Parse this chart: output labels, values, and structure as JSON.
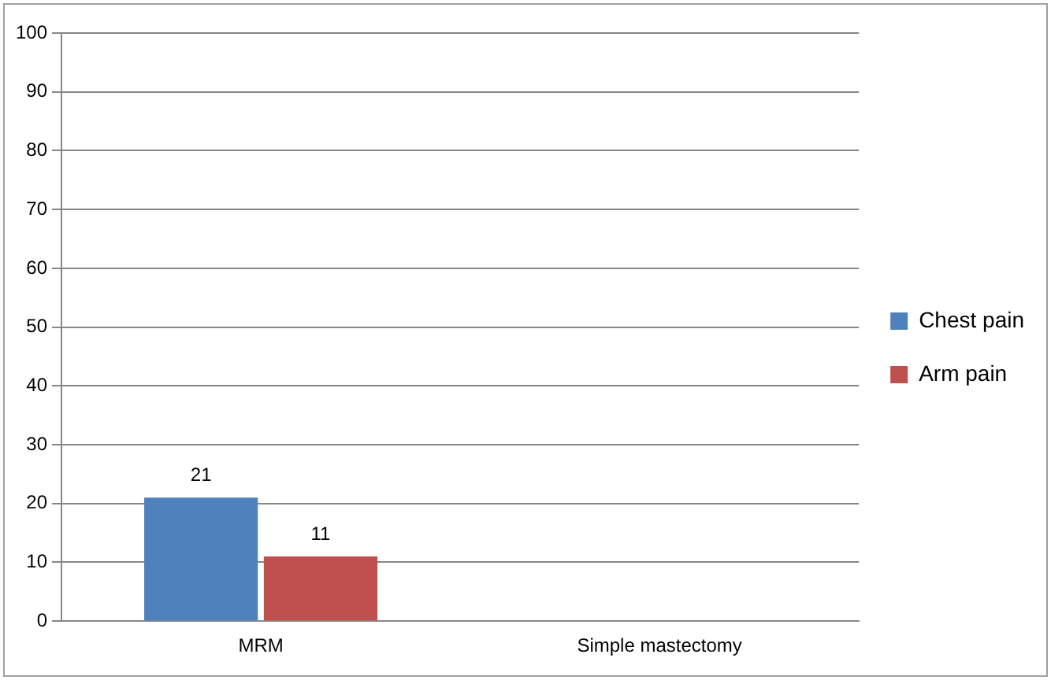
{
  "chart_data": {
    "type": "bar",
    "categories": [
      "MRM",
      "Simple mastectomy"
    ],
    "series": [
      {
        "name": "Chest pain",
        "color": "#4f81bd",
        "values": [
          21,
          0
        ],
        "value_labels": [
          "21",
          null
        ]
      },
      {
        "name": "Arm pain",
        "color": "#c0504d",
        "values": [
          11,
          0
        ],
        "value_labels": [
          "11",
          null
        ]
      }
    ],
    "ylim": [
      0,
      100
    ],
    "yticks": [
      0,
      10,
      20,
      30,
      40,
      50,
      60,
      70,
      80,
      90,
      100
    ],
    "grid": "y",
    "legend": "right"
  }
}
